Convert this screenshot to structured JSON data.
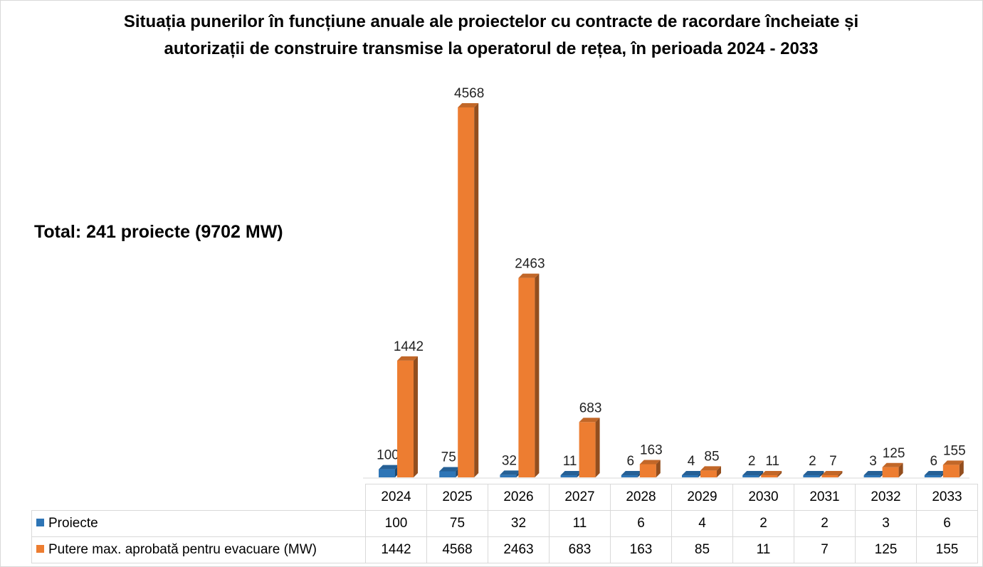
{
  "title_line1": "Situația punerilor în funcțiune anuale ale proiectelor cu contracte de racordare încheiate și",
  "title_line2": "autorizații de construire transmise la operatorul de rețea, în perioada 2024 - 2033",
  "total_label": "Total: 241 proiecte (9702 MW)",
  "colors": {
    "series_1": "#2e75b6",
    "series_2": "#ed7d31"
  },
  "chart_data": {
    "type": "bar",
    "categories": [
      "2024",
      "2025",
      "2026",
      "2027",
      "2028",
      "2029",
      "2030",
      "2031",
      "2032",
      "2033"
    ],
    "series": [
      {
        "name": "Proiecte",
        "values": [
          100,
          75,
          32,
          11,
          6,
          4,
          2,
          2,
          3,
          6
        ]
      },
      {
        "name": "Putere max. aprobată pentru evacuare (MW)",
        "values": [
          1442,
          4568,
          2463,
          683,
          163,
          85,
          11,
          7,
          125,
          155
        ]
      }
    ],
    "ylim": [
      0,
      4568
    ],
    "legend": "data table below chart",
    "grid": false
  }
}
